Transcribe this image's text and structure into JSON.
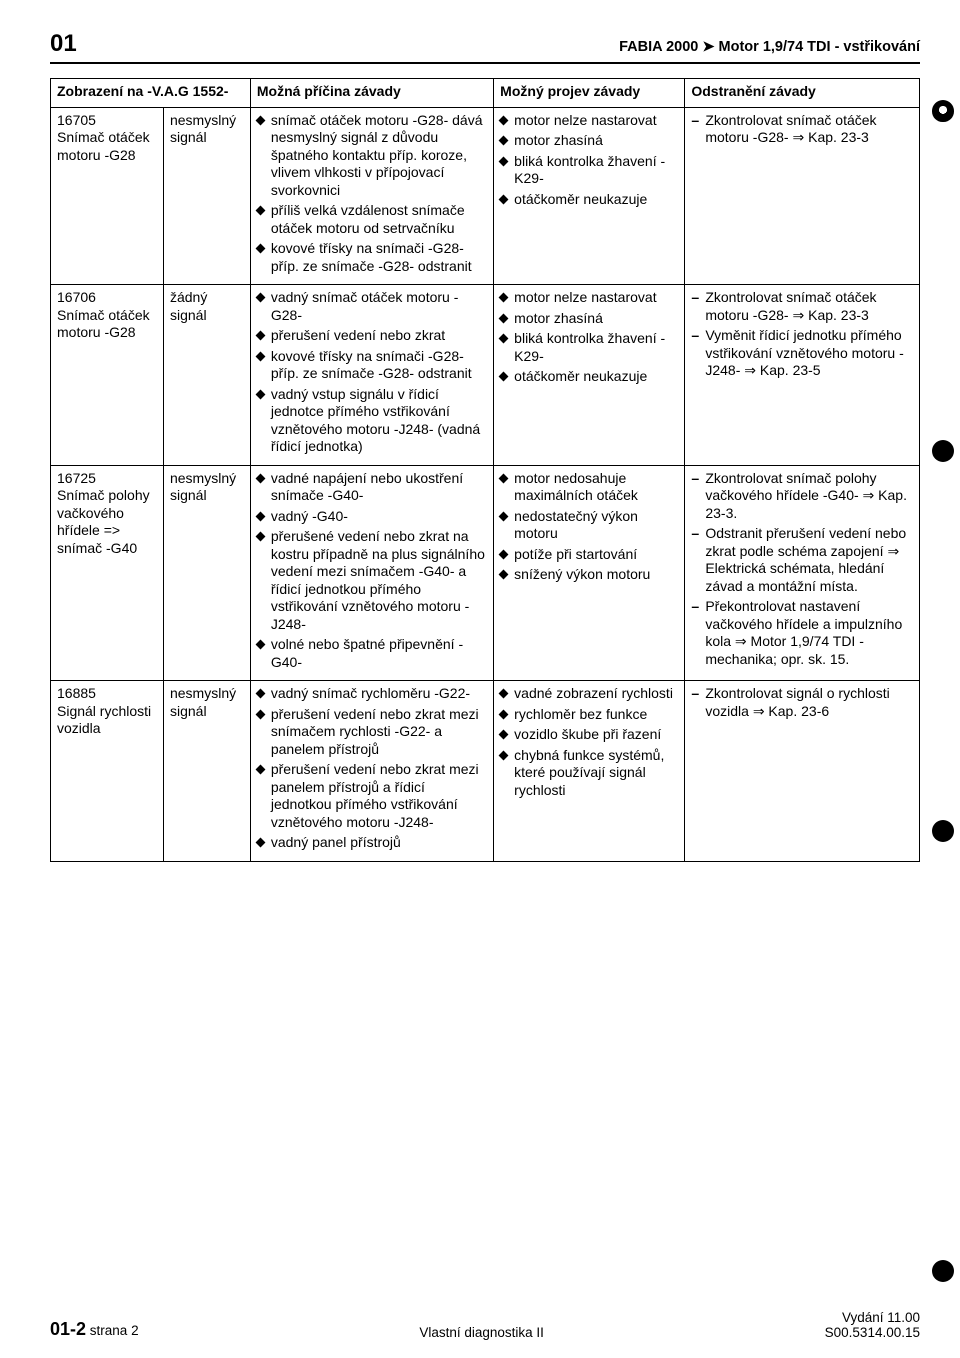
{
  "header": {
    "chapter": "01",
    "title_right": "FABIA 2000 ➤  Motor 1,9/74 TDI - vstřikování"
  },
  "table": {
    "col_widths": [
      "12%",
      "10%",
      "28%",
      "23%",
      "27%"
    ],
    "headers": {
      "c1": "Zobrazení na -V.A.G 1552-",
      "c3": "Možná příčina závady",
      "c4": "Možný projev závady",
      "c5": "Odstranění závady"
    },
    "rows": [
      {
        "code": "16705\nSnímač otáček motoru -G28",
        "signal": "nesmyslný signál",
        "cause": [
          "snímač otáček motoru -G28- dává nesmyslný signál z důvodu špatného kontaktu příp. koroze, vlivem vlhkosti v přípojovací svorkovnici",
          "příliš velká vzdálenost snímače otáček motoru od setrvačníku",
          "kovové třísky na snímači -G28- příp. ze snímače -G28- odstranit"
        ],
        "symptom": [
          "motor nelze nastarovat",
          "motor zhasíná",
          "bliká kontrolka žhavení -K29-",
          "otáčkoměr neukazuje"
        ],
        "fix": [
          "Zkontrolovat snímač otáček motoru -G28- ⇒ Kap. 23-3"
        ]
      },
      {
        "code": "16706\nSnímač otáček motoru -G28",
        "signal": "žádný signál",
        "cause": [
          "vadný snímač otáček motoru -G28-",
          "přerušení vedení nebo zkrat",
          "kovové třísky na snímači -G28- příp. ze snímače -G28- odstranit",
          "vadný vstup signálu v řídicí jednotce přímého vstřikování vznětového motoru -J248- (vadná řídicí jednotka)"
        ],
        "symptom": [
          "motor nelze nastarovat",
          "motor zhasíná",
          "bliká kontrolka žhavení -K29-",
          "otáčkoměr neukazuje"
        ],
        "fix": [
          "Zkontrolovat snímač otáček motoru -G28- ⇒ Kap. 23-3",
          "Vyměnit řídicí jednotku přímého vstřikování vznětového motoru -J248- ⇒ Kap. 23-5"
        ]
      },
      {
        "code": "16725\nSnímač polohy vačkového hřídele => snímač -G40",
        "signal": "nesmyslný signál",
        "cause": [
          "vadné napájení nebo ukostření snímače -G40-",
          "vadný -G40-",
          "přerušené vedení nebo zkrat na kostru případně na plus signálního vedení mezi snímačem -G40- a řídicí jednotkou přímého vstřikování vznětového motoru -J248-",
          "volné nebo špatné připevnění -G40-"
        ],
        "symptom": [
          "motor nedosahuje maximálních otáček",
          "nedostatečný výkon motoru",
          "potíže při startování",
          "snížený výkon motoru"
        ],
        "fix": [
          "Zkontrolovat snímač polohy vačkového hřídele -G40- ⇒ Kap. 23-3.",
          "Odstranit přerušení vedení nebo zkrat podle schéma zapojení ⇒ Elektrická schémata, hledání závad a montážní místa.",
          "Překontrolovat nastavení vačkového hřídele a impulzního kola ⇒ Motor 1,9/74 TDI - mechanika; opr. sk. 15."
        ]
      },
      {
        "code": "16885\nSignál rychlosti vozidla",
        "signal": "nesmyslný signál",
        "cause": [
          "vadný snímač rychloměru -G22-",
          "přerušení vedení nebo zkrat mezi snímačem rychlosti -G22- a panelem přístrojů",
          "přerušení vedení nebo zkrat mezi panelem přístrojů a řídicí jednotkou přímého vstřikování vznětového motoru -J248-",
          "vadný panel přístrojů"
        ],
        "symptom": [
          "vadné zobrazení rychlosti",
          "rychloměr bez funkce",
          "vozidlo škube při řazení",
          "chybná funkce systémů, které používají signál rychlosti"
        ],
        "fix": [
          "Zkontrolovat signál o rychlosti vozidla ⇒ Kap. 23-6"
        ]
      }
    ]
  },
  "footer": {
    "left_bold": "01-2",
    "left_small": "strana 2",
    "center": "Vlastní diagnostika II",
    "right_line1": "Vydání 11.00",
    "right_line2": "S00.5314.00.15"
  }
}
